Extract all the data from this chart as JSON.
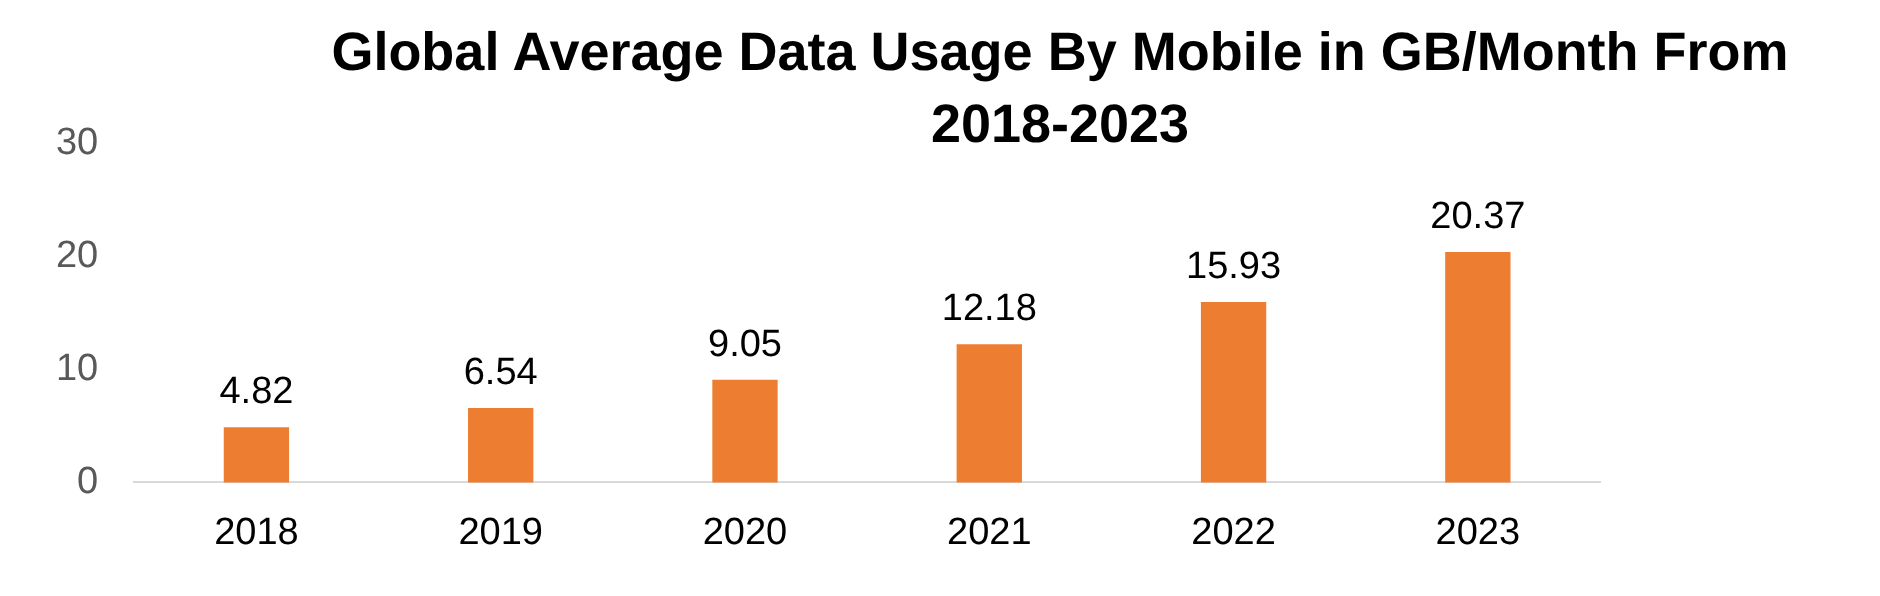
{
  "chart_data": {
    "type": "bar",
    "title": "Global Average Data Usage By Mobile in GB/Month From 2018-2023",
    "categories": [
      "2018",
      "2019",
      "2020",
      "2021",
      "2022",
      "2023"
    ],
    "values": [
      4.82,
      6.54,
      9.05,
      12.18,
      15.93,
      20.37
    ],
    "color": "#ed7d31",
    "ylim": [
      0,
      30
    ],
    "yticks": [
      0,
      10,
      20,
      30
    ],
    "grid": false,
    "legend": false,
    "data_labels": true
  }
}
